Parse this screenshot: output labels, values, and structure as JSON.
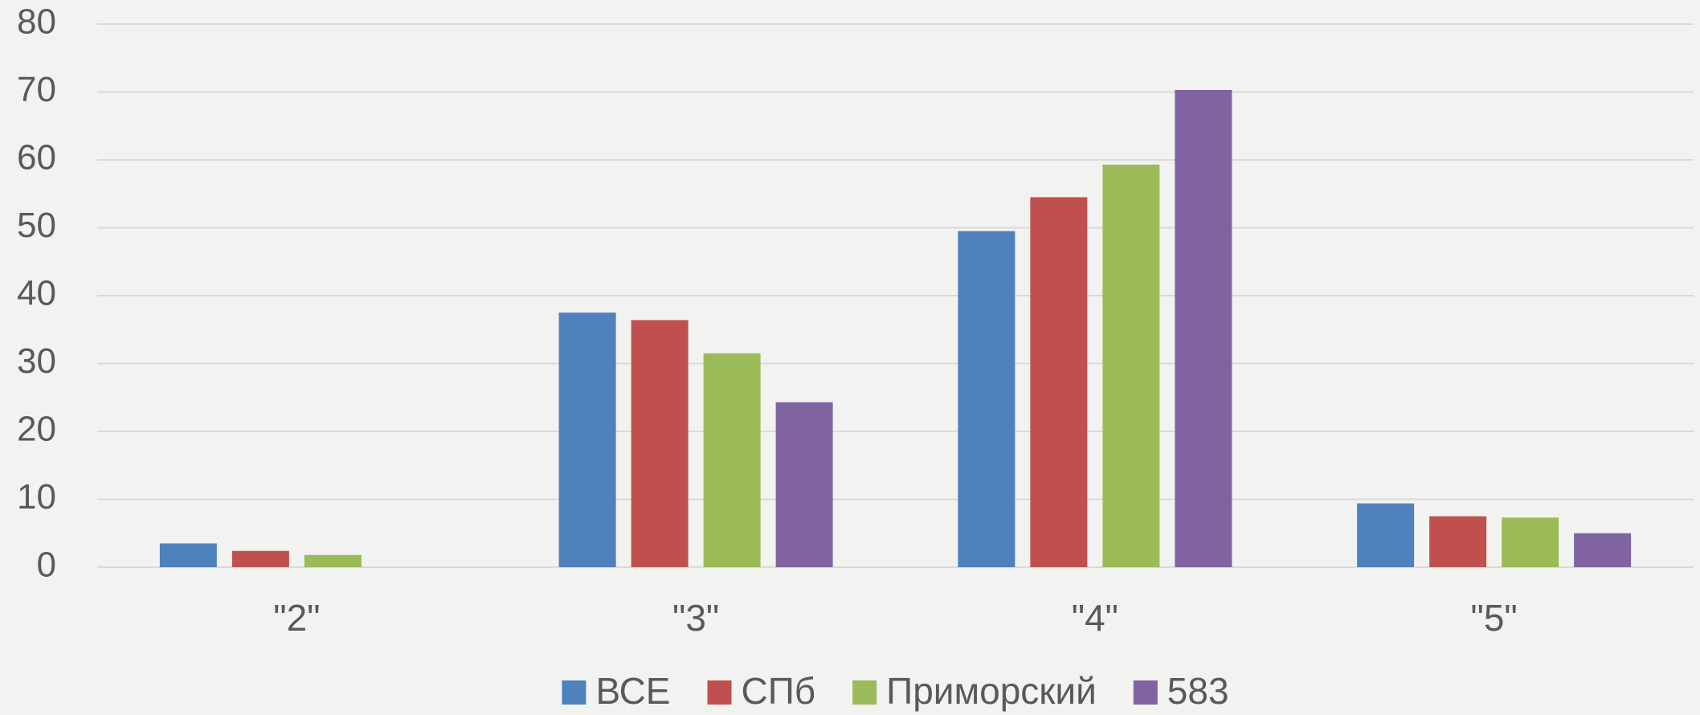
{
  "chart_data": {
    "type": "bar",
    "categories": [
      "\"2\"",
      "\"3\"",
      "\"4\"",
      "\"5\""
    ],
    "series": [
      {
        "name": "ВСЕ",
        "color": "#4f81bd",
        "values": [
          3.5,
          37.5,
          49.5,
          9.4
        ]
      },
      {
        "name": "СПб",
        "color": "#c0504d",
        "values": [
          2.4,
          36.4,
          54.5,
          7.5
        ]
      },
      {
        "name": "Приморский",
        "color": "#9bbb59",
        "values": [
          1.8,
          31.5,
          59.3,
          7.3
        ]
      },
      {
        "name": "583",
        "color": "#8064a2",
        "values": [
          0,
          24.3,
          70.3,
          5.0
        ]
      }
    ],
    "ylim": [
      0,
      80
    ],
    "yticks": [
      0,
      10,
      20,
      30,
      40,
      50,
      60,
      70,
      80
    ],
    "grid": true,
    "legend": "bottom"
  }
}
